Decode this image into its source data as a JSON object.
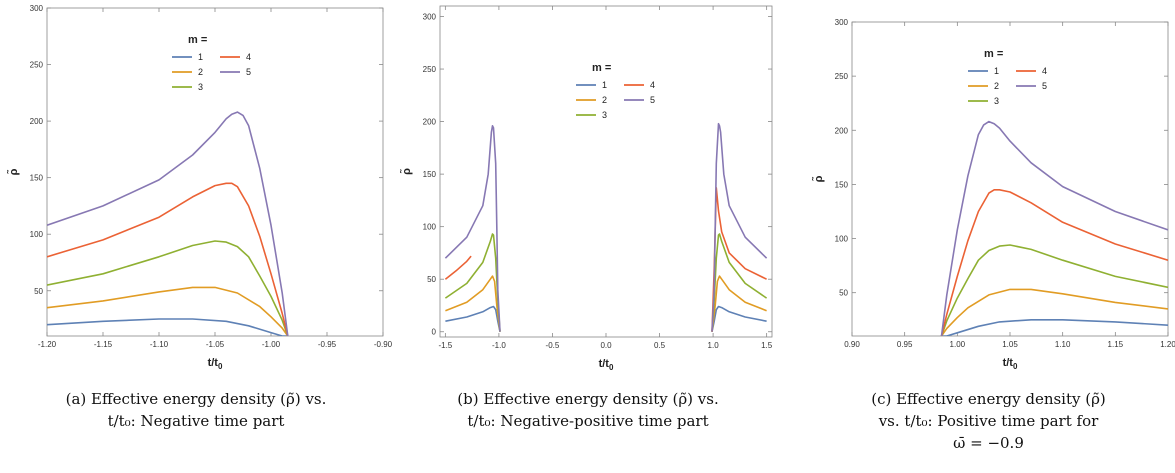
{
  "colors": {
    "1": "#5e81b5",
    "2": "#e19c24",
    "3": "#8fb032",
    "4": "#eb6235",
    "5": "#8778b3"
  },
  "chart_data": [
    {
      "type": "line",
      "panel": "a",
      "ylabel": "ρ̃",
      "xlabel": "t/t0",
      "xlim": [
        -1.2,
        -0.9
      ],
      "ylim": [
        10,
        300
      ],
      "xticks": [
        "-1.20",
        "-1.15",
        "-1.10",
        "-1.05",
        "-1.00",
        "-0.95",
        "-0.90"
      ],
      "yticks": [
        "50",
        "100",
        "150",
        "200",
        "250",
        "300"
      ],
      "legend": {
        "title": "m =",
        "items": [
          "1",
          "2",
          "3",
          "4",
          "5"
        ],
        "placement": "top-center"
      },
      "series": [
        {
          "name": "1",
          "x": [
            -1.2,
            -1.15,
            -1.1,
            -1.07,
            -1.04,
            -1.02,
            -1.0,
            -0.99,
            -0.985
          ],
          "y": [
            20,
            23,
            25,
            25,
            23,
            19,
            13,
            10,
            10
          ]
        },
        {
          "name": "2",
          "x": [
            -1.2,
            -1.15,
            -1.1,
            -1.07,
            -1.05,
            -1.03,
            -1.01,
            -1.0,
            -0.99,
            -0.985
          ],
          "y": [
            35,
            41,
            49,
            53,
            53,
            48,
            36,
            27,
            17,
            10
          ]
        },
        {
          "name": "3",
          "x": [
            -1.2,
            -1.15,
            -1.1,
            -1.07,
            -1.05,
            -1.04,
            -1.03,
            -1.02,
            -1.01,
            -1.0,
            -0.99,
            -0.985
          ],
          "y": [
            55,
            65,
            80,
            90,
            94,
            93,
            89,
            80,
            63,
            45,
            24,
            10
          ]
        },
        {
          "name": "4",
          "x": [
            -1.2,
            -1.15,
            -1.1,
            -1.07,
            -1.05,
            -1.04,
            -1.035,
            -1.03,
            -1.02,
            -1.01,
            -1.0,
            -0.99,
            -0.985
          ],
          "y": [
            80,
            95,
            115,
            133,
            143,
            145,
            145,
            142,
            125,
            98,
            65,
            30,
            10
          ]
        },
        {
          "name": "5",
          "x": [
            -1.2,
            -1.15,
            -1.1,
            -1.07,
            -1.05,
            -1.04,
            -1.035,
            -1.03,
            -1.025,
            -1.02,
            -1.01,
            -1.0,
            -0.99,
            -0.985
          ],
          "y": [
            108,
            125,
            148,
            170,
            190,
            202,
            206,
            208,
            205,
            196,
            158,
            108,
            48,
            10
          ]
        }
      ]
    },
    {
      "type": "line",
      "panel": "b",
      "ylabel": "ρ̃",
      "xlabel": "t/t0",
      "xlim": [
        -1.55,
        1.55
      ],
      "ylim": [
        -5,
        310
      ],
      "xticks": [
        "-1.5",
        "-1.0",
        "-0.5",
        "0.0",
        "0.5",
        "1.0",
        "1.5"
      ],
      "yticks": [
        "0",
        "50",
        "100",
        "150",
        "200",
        "250",
        "300"
      ],
      "legend": {
        "title": "m =",
        "items": [
          "1",
          "2",
          "3",
          "4",
          "5"
        ],
        "placement": "center"
      },
      "series": [
        {
          "name": "1",
          "segments": [
            {
              "x": [
                -1.5,
                -1.3,
                -1.15,
                -1.08,
                -1.05,
                -1.03,
                -1.01,
                -0.99
              ],
              "y": [
                10,
                14,
                19,
                23,
                24,
                21,
                10,
                0
              ]
            },
            {
              "x": [
                0.99,
                1.01,
                1.03,
                1.05,
                1.08,
                1.15,
                1.3,
                1.5
              ],
              "y": [
                0,
                10,
                21,
                24,
                23,
                19,
                14,
                10
              ]
            }
          ]
        },
        {
          "name": "2",
          "segments": [
            {
              "x": [
                -1.5,
                -1.3,
                -1.15,
                -1.08,
                -1.06,
                -1.04,
                -1.02,
                -0.99
              ],
              "y": [
                20,
                28,
                40,
                50,
                53,
                48,
                25,
                0
              ]
            },
            {
              "x": [
                0.99,
                1.02,
                1.04,
                1.06,
                1.08,
                1.15,
                1.3,
                1.5
              ],
              "y": [
                0,
                25,
                48,
                53,
                50,
                40,
                28,
                20
              ]
            }
          ]
        },
        {
          "name": "3",
          "segments": [
            {
              "x": [
                -1.5,
                -1.3,
                -1.15,
                -1.08,
                -1.06,
                -1.05,
                -1.03,
                -1.01,
                -0.99
              ],
              "y": [
                32,
                46,
                66,
                86,
                93,
                92,
                70,
                30,
                0
              ]
            },
            {
              "x": [
                0.99,
                1.01,
                1.03,
                1.05,
                1.06,
                1.08,
                1.15,
                1.3,
                1.5
              ],
              "y": [
                0,
                30,
                70,
                92,
                93,
                86,
                66,
                46,
                32
              ]
            }
          ]
        },
        {
          "name": "4",
          "segments": [
            {
              "x": [
                -1.5,
                -1.4,
                -1.3,
                -1.26
              ],
              "y": [
                50,
                58,
                67,
                72
              ]
            },
            {
              "x": [
                0.99,
                1.01,
                1.03,
                1.05,
                1.08,
                1.15,
                1.3,
                1.5
              ],
              "y": [
                0,
                60,
                137,
                115,
                95,
                75,
                60,
                50
              ]
            }
          ]
        },
        {
          "name": "5",
          "segments": [
            {
              "x": [
                -1.5,
                -1.3,
                -1.15,
                -1.1,
                -1.07,
                -1.06,
                -1.05,
                -1.03,
                -1.02,
                -1.01,
                -0.99
              ],
              "y": [
                70,
                90,
                120,
                150,
                190,
                196,
                194,
                160,
                100,
                40,
                0
              ]
            },
            {
              "x": [
                0.99,
                1.01,
                1.02,
                1.03,
                1.05,
                1.06,
                1.07,
                1.1,
                1.15,
                1.3,
                1.5
              ],
              "y": [
                0,
                40,
                100,
                160,
                198,
                196,
                190,
                150,
                120,
                90,
                70
              ]
            }
          ]
        }
      ]
    },
    {
      "type": "line",
      "panel": "c",
      "ylabel": "ρ̃",
      "xlabel": "t/t0",
      "xlim": [
        0.9,
        1.2
      ],
      "ylim": [
        10,
        300
      ],
      "xticks": [
        "0.90",
        "0.95",
        "1.00",
        "1.05",
        "1.10",
        "1.15",
        "1.20"
      ],
      "yticks": [
        "50",
        "100",
        "150",
        "200",
        "250",
        "300"
      ],
      "legend": {
        "title": "m =",
        "items": [
          "1",
          "2",
          "3",
          "4",
          "5"
        ],
        "placement": "top-center"
      },
      "series": [
        {
          "name": "1",
          "x": [
            0.985,
            0.99,
            1.0,
            1.02,
            1.04,
            1.07,
            1.1,
            1.15,
            1.2
          ],
          "y": [
            10,
            10,
            13,
            19,
            23,
            25,
            25,
            23,
            20
          ]
        },
        {
          "name": "2",
          "x": [
            0.985,
            0.99,
            1.0,
            1.01,
            1.03,
            1.05,
            1.07,
            1.1,
            1.15,
            1.2
          ],
          "y": [
            10,
            17,
            27,
            36,
            48,
            53,
            53,
            49,
            41,
            35
          ]
        },
        {
          "name": "3",
          "x": [
            0.985,
            0.99,
            1.0,
            1.01,
            1.02,
            1.03,
            1.04,
            1.05,
            1.07,
            1.1,
            1.15,
            1.2
          ],
          "y": [
            10,
            24,
            45,
            63,
            80,
            89,
            93,
            94,
            90,
            80,
            65,
            55
          ]
        },
        {
          "name": "4",
          "x": [
            0.985,
            0.99,
            1.0,
            1.01,
            1.02,
            1.03,
            1.035,
            1.04,
            1.05,
            1.07,
            1.1,
            1.15,
            1.2
          ],
          "y": [
            10,
            30,
            65,
            98,
            125,
            142,
            145,
            145,
            143,
            133,
            115,
            95,
            80
          ]
        },
        {
          "name": "5",
          "x": [
            0.985,
            0.99,
            1.0,
            1.01,
            1.02,
            1.025,
            1.03,
            1.035,
            1.04,
            1.05,
            1.07,
            1.1,
            1.15,
            1.2
          ],
          "y": [
            10,
            48,
            108,
            158,
            196,
            205,
            208,
            206,
            202,
            190,
            170,
            148,
            125,
            108
          ]
        }
      ]
    }
  ],
  "captions": [
    {
      "line1": "(a) Effective energy density (ρ̃) vs.",
      "line2": "t/t₀: Negative time part",
      "line3": ""
    },
    {
      "line1": "(b) Effective energy density (ρ̃) vs.",
      "line2": "t/t₀: Negative-positive time part",
      "line3": ""
    },
    {
      "line1": "(c) Effective energy density (ρ̃)",
      "line2": "vs. t/t₀: Positive time part for",
      "line3": "ω̄ = −0.9"
    }
  ]
}
